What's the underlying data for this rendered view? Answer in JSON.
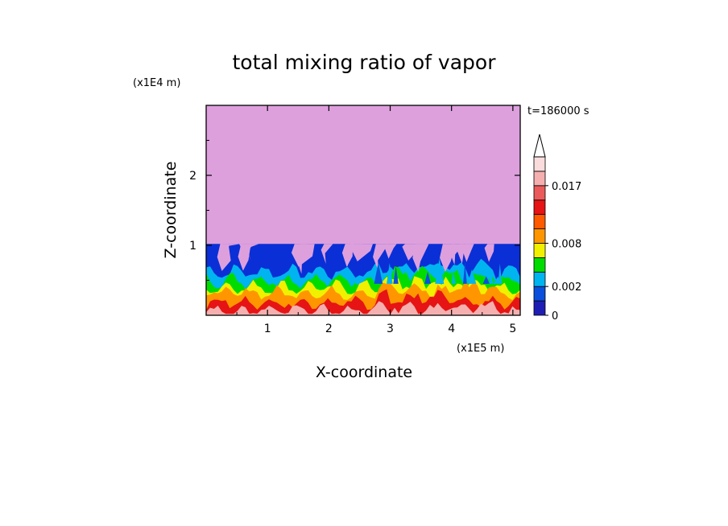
{
  "chart_data": {
    "type": "heatmap",
    "title": "total mixing ratio of vapor",
    "time_label": "t=186000 s",
    "xlabel": "X-coordinate",
    "ylabel": "Z-coordinate",
    "x_scale_label": "(x1E5 m)",
    "y_scale_label": "(x1E4 m)",
    "x_ticks": [
      "1",
      "2",
      "3",
      "4",
      "5"
    ],
    "y_ticks": [
      "1",
      "2"
    ],
    "xlim": [
      0,
      5.12
    ],
    "ylim": [
      0,
      3.0
    ],
    "upper_layer_top": 1.02,
    "colorbar": {
      "levels": [
        0,
        0.001,
        0.002,
        0.004,
        0.006,
        0.008,
        0.01,
        0.012,
        0.014,
        0.017,
        0.02,
        0.023
      ],
      "colors": [
        "#1e1eb4",
        "#0a50dc",
        "#00b4f0",
        "#00dc00",
        "#f0f000",
        "#ff9600",
        "#ff5a00",
        "#e61414",
        "#eb5a5a",
        "#f5afaf",
        "#fadcdc"
      ],
      "labels": [
        "0",
        "0.002",
        "0.008",
        "0.017"
      ],
      "extend": "max"
    },
    "upper_region_color": "#dda0dd",
    "band_tops_km": [
      {
        "color": "#0a2fd6",
        "z": 1.02
      },
      {
        "color": "#00b4f0",
        "z": 0.62
      },
      {
        "color": "#00dc00",
        "z": 0.5
      },
      {
        "color": "#f0f000",
        "z": 0.4
      },
      {
        "color": "#ff9600",
        "z": 0.32
      },
      {
        "color": "#e61414",
        "z": 0.18
      },
      {
        "color": "#f5afaf",
        "z": 0.06
      }
    ]
  }
}
